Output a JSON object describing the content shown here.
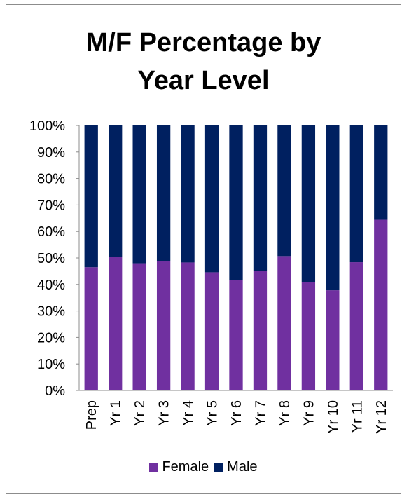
{
  "chart_data": {
    "type": "bar",
    "stacked": true,
    "percent": true,
    "title_line1": "M/F Percentage by",
    "title_line2": "Year Level",
    "categories": [
      "Prep",
      "Yr 1",
      "Yr 2",
      "Yr 3",
      "Yr 4",
      "Yr 5",
      "Yr 6",
      "Yr 7",
      "Yr 8",
      "Yr 9",
      "Yr 10",
      "Yr 11",
      "Yr 12"
    ],
    "series": [
      {
        "name": "Female",
        "color": "#7030a0",
        "values": [
          46.5,
          50.3,
          48.0,
          48.7,
          48.3,
          44.6,
          41.6,
          45.0,
          50.7,
          40.8,
          37.8,
          48.4,
          64.4
        ]
      },
      {
        "name": "Male",
        "color": "#002060",
        "values": [
          53.5,
          49.7,
          52.0,
          51.3,
          51.7,
          55.4,
          58.4,
          55.0,
          49.3,
          59.2,
          62.2,
          51.6,
          35.6
        ]
      }
    ],
    "ylim": [
      0,
      100
    ],
    "yticks": [
      "0%",
      "10%",
      "20%",
      "30%",
      "40%",
      "50%",
      "60%",
      "70%",
      "80%",
      "90%",
      "100%"
    ],
    "grid": false,
    "legend_position": "bottom"
  }
}
